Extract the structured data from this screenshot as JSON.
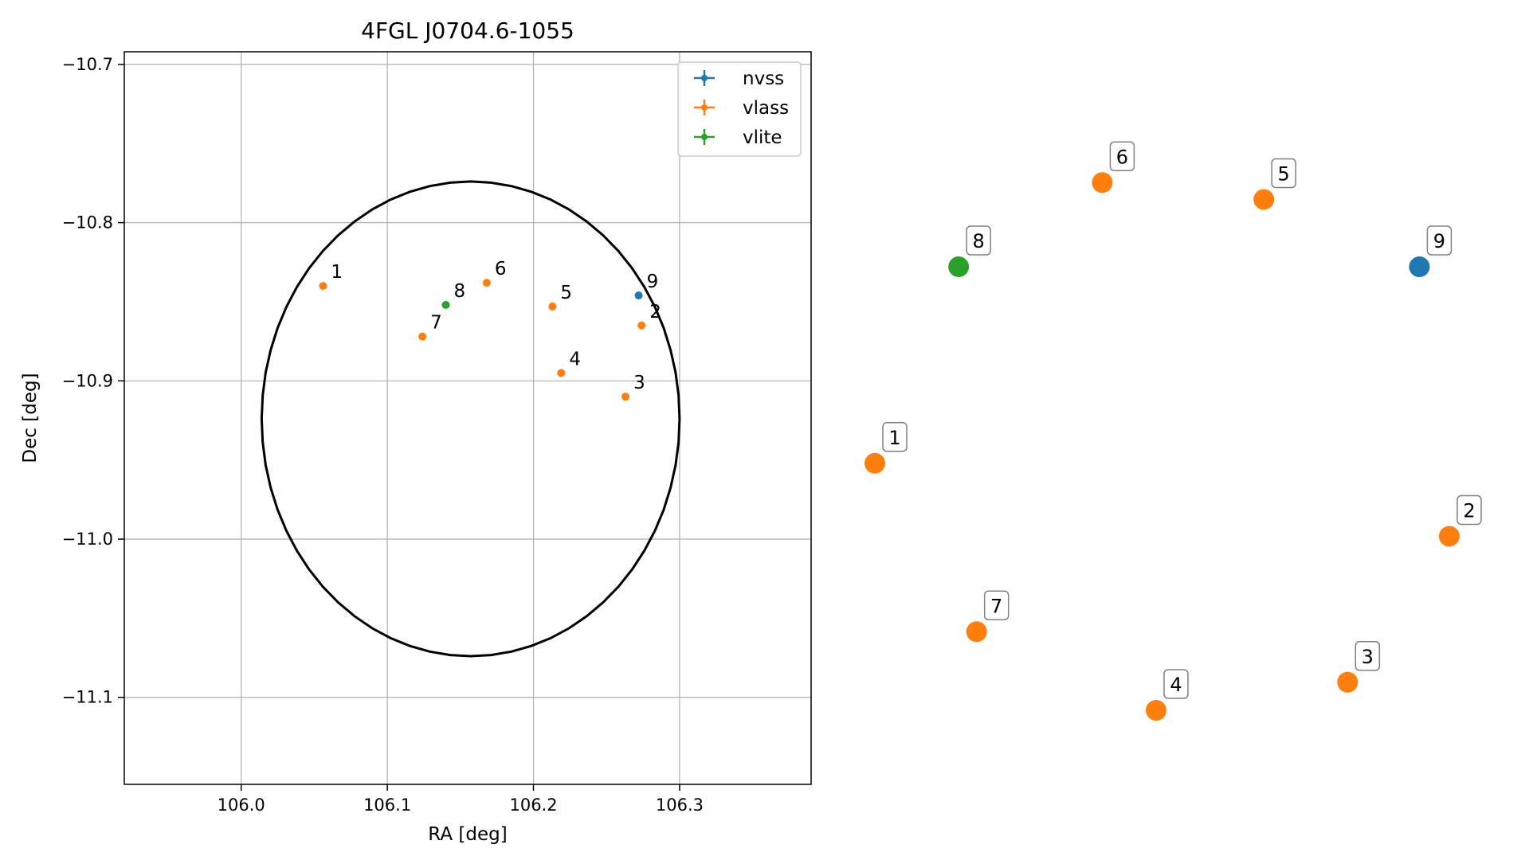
{
  "chart_data": [
    {
      "type": "scatter",
      "title": "4FGL J0704.6-1055",
      "xlabel": "RA [deg]",
      "ylabel": "Dec [deg]",
      "xlim": [
        105.92,
        106.39
      ],
      "ylim": [
        -11.155,
        -10.692
      ],
      "xticks": [
        106.0,
        106.1,
        106.2,
        106.3
      ],
      "xtick_labels": [
        "106.0",
        "106.1",
        "106.2",
        "106.3"
      ],
      "yticks": [
        -10.7,
        -10.8,
        -10.9,
        -11.0,
        -11.1
      ],
      "ytick_labels": [
        "−10.7",
        "−10.8",
        "−10.9",
        "−11.0",
        "−11.1"
      ],
      "grid": true,
      "legend_position": "top-right",
      "legend": [
        {
          "label": "nvss",
          "color": "#1f77b4"
        },
        {
          "label": "vlass",
          "color": "#ff7f0e"
        },
        {
          "label": "vlite",
          "color": "#2ca02c"
        }
      ],
      "points": [
        {
          "label": "1",
          "survey": "vlass",
          "ra": 106.056,
          "dec": -10.84
        },
        {
          "label": "2",
          "survey": "vlass",
          "ra": 106.274,
          "dec": -10.865
        },
        {
          "label": "3",
          "survey": "vlass",
          "ra": 106.263,
          "dec": -10.91
        },
        {
          "label": "4",
          "survey": "vlass",
          "ra": 106.219,
          "dec": -10.895
        },
        {
          "label": "5",
          "survey": "vlass",
          "ra": 106.213,
          "dec": -10.853
        },
        {
          "label": "6",
          "survey": "vlass",
          "ra": 106.168,
          "dec": -10.838
        },
        {
          "label": "7",
          "survey": "vlass",
          "ra": 106.124,
          "dec": -10.872
        },
        {
          "label": "8",
          "survey": "vlite",
          "ra": 106.14,
          "dec": -10.852
        },
        {
          "label": "9",
          "survey": "nvss",
          "ra": 106.272,
          "dec": -10.846
        }
      ],
      "ellipse": {
        "center_ra": 106.157,
        "center_dec": -10.924,
        "semi_ra": 0.143,
        "semi_dec": 0.15,
        "color": "#000000"
      }
    },
    {
      "type": "scatter",
      "axes": "hidden",
      "points": [
        {
          "label": "1",
          "survey": "vlass",
          "x": 0.02,
          "y": 0.44
        },
        {
          "label": "2",
          "survey": "vlass",
          "x": 0.98,
          "y": 0.31
        },
        {
          "label": "3",
          "survey": "vlass",
          "x": 0.81,
          "y": 0.05
        },
        {
          "label": "4",
          "survey": "vlass",
          "x": 0.49,
          "y": 0.0
        },
        {
          "label": "5",
          "survey": "vlass",
          "x": 0.67,
          "y": 0.91
        },
        {
          "label": "6",
          "survey": "vlass",
          "x": 0.4,
          "y": 0.94
        },
        {
          "label": "7",
          "survey": "vlass",
          "x": 0.19,
          "y": 0.14
        },
        {
          "label": "8",
          "survey": "vlite",
          "x": 0.16,
          "y": 0.79
        },
        {
          "label": "9",
          "survey": "nvss",
          "x": 0.93,
          "y": 0.79
        }
      ]
    }
  ],
  "colors": {
    "nvss": "#1f77b4",
    "vlass": "#ff7f0e",
    "vlite": "#2ca02c"
  }
}
